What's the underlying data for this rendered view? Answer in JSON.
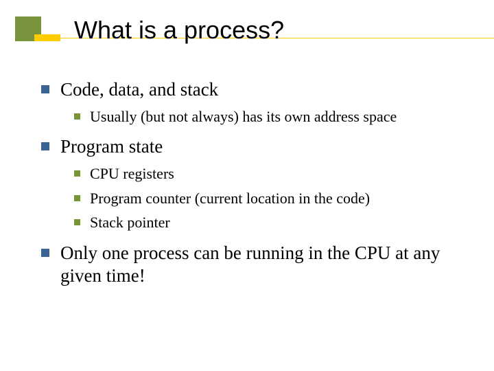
{
  "title": "What is a process?",
  "decoration": {
    "green": "#77933c",
    "yellow": "#ffcc00",
    "line_color": "#ffcc00"
  },
  "bullets_level1_color": "#3b6494",
  "bullets_level2_color": "#77933c",
  "title_fontsize": 36,
  "l1_fontsize": 27,
  "l2_fontsize": 22,
  "items": [
    {
      "text": "Code, data, and stack",
      "children": [
        {
          "text": "Usually (but not always) has its own address space"
        }
      ]
    },
    {
      "text": "Program state",
      "children": [
        {
          "text": "CPU registers"
        },
        {
          "text": "Program counter (current location in the code)"
        },
        {
          "text": "Stack pointer"
        }
      ]
    },
    {
      "text": "Only one process can be running in the CPU at any given time!",
      "children": []
    }
  ]
}
